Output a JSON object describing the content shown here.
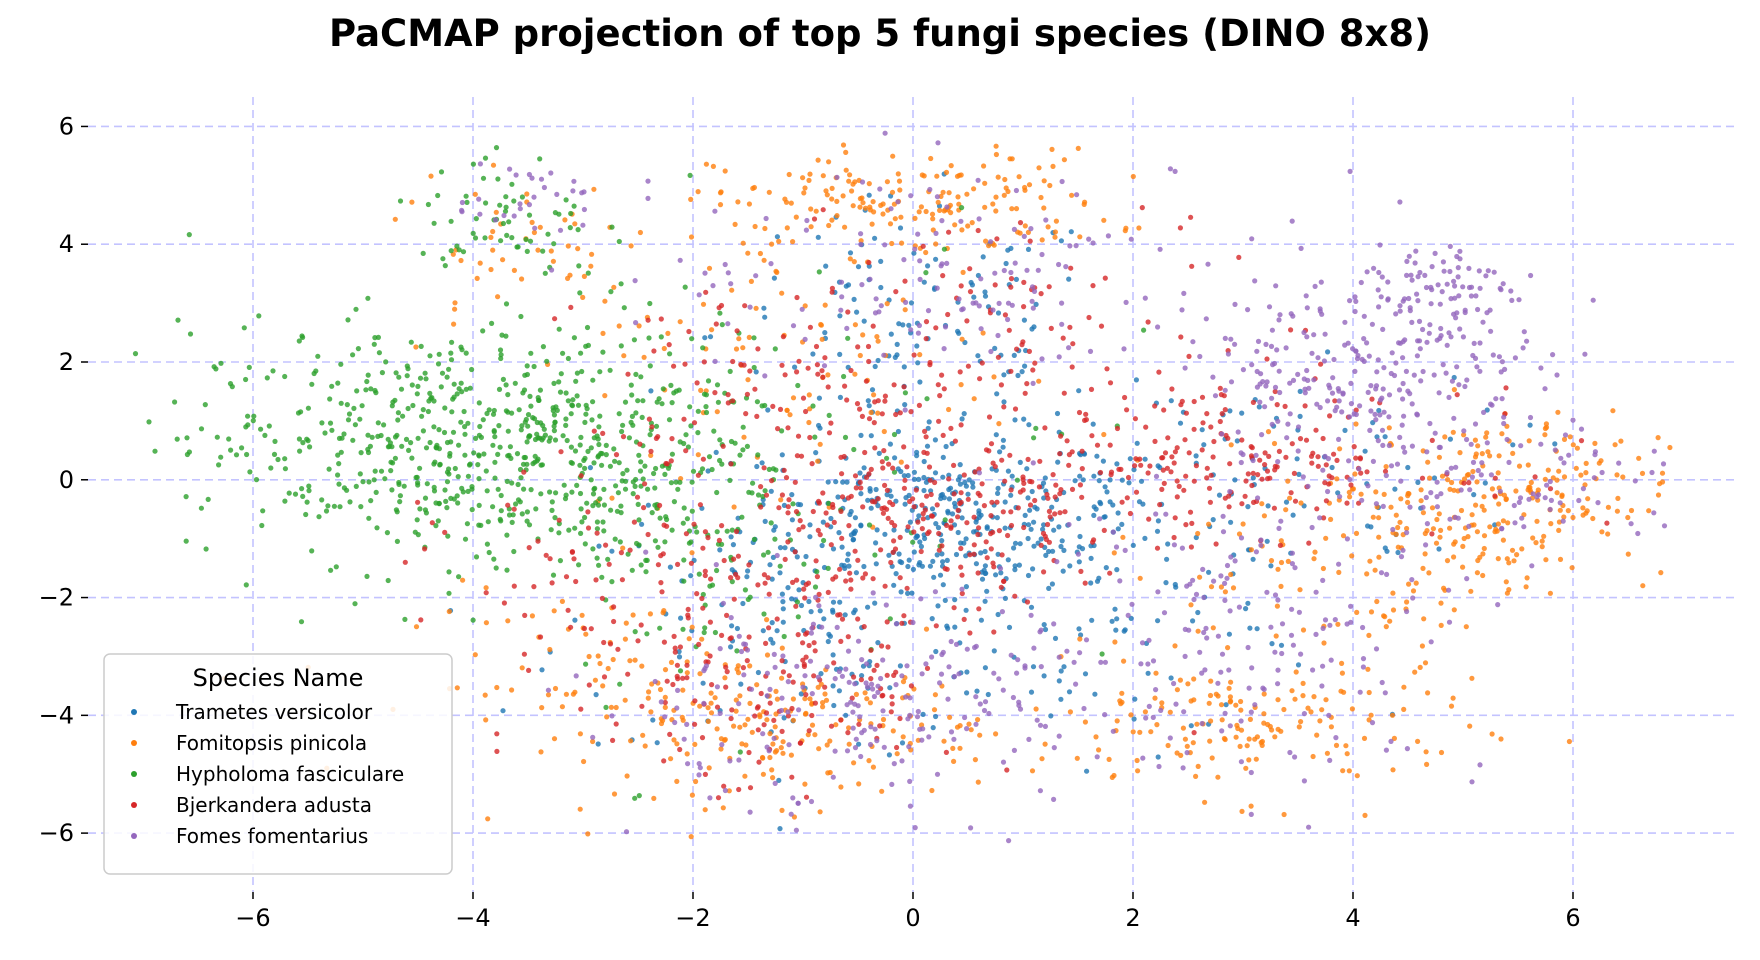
{
  "chart_data": {
    "type": "scatter",
    "title": "PaCMAP projection of top 5 fungi species (DINO 8x8)",
    "xlabel": "",
    "ylabel": "",
    "xlim": [
      -7.5,
      7.5
    ],
    "ylim": [
      -7,
      6.5
    ],
    "xticks": [
      -6,
      -4,
      -2,
      0,
      2,
      4,
      6
    ],
    "yticks": [
      6,
      4,
      2,
      0,
      -2,
      -4,
      -6
    ],
    "xtick_labels": [
      "−6",
      "−4",
      "−2",
      "0",
      "2",
      "4",
      "6"
    ],
    "ytick_labels": [
      "6",
      "4",
      "2",
      "0",
      "−2",
      "−4",
      "−6"
    ],
    "grid": true,
    "grid_color": "#c3c3ff",
    "legend": {
      "title": "Species Name",
      "placement": "lower-left"
    },
    "series": [
      {
        "name": "Trametes versicolor",
        "color": "#1f77b4",
        "clusters": [
          {
            "cx": 0.2,
            "cy": -0.6,
            "sx": 0.9,
            "sy": 0.7,
            "n": 320
          },
          {
            "cx": 0.0,
            "cy": 2.5,
            "sx": 0.9,
            "sy": 1.1,
            "n": 120
          },
          {
            "cx": 1.5,
            "cy": -1.8,
            "sx": 1.2,
            "sy": 1.3,
            "n": 150
          },
          {
            "cx": -1.0,
            "cy": -2.5,
            "sx": 1.1,
            "sy": 1.2,
            "n": 120
          },
          {
            "cx": 3.0,
            "cy": 0.3,
            "sx": 1.2,
            "sy": 0.8,
            "n": 80
          }
        ]
      },
      {
        "name": "Fomitopsis pinicola",
        "color": "#ff7f0e",
        "clusters": [
          {
            "cx": 0.0,
            "cy": 4.7,
            "sx": 0.9,
            "sy": 0.45,
            "n": 180
          },
          {
            "cx": -2.5,
            "cy": -3.5,
            "sx": 1.0,
            "sy": 0.8,
            "n": 110
          },
          {
            "cx": -1.0,
            "cy": -4.3,
            "sx": 0.8,
            "sy": 0.6,
            "n": 140
          },
          {
            "cx": 3.0,
            "cy": -4.2,
            "sx": 1.0,
            "sy": 0.6,
            "n": 160
          },
          {
            "cx": 5.3,
            "cy": -0.3,
            "sx": 0.8,
            "sy": 0.7,
            "n": 220
          },
          {
            "cx": 4.0,
            "cy": -1.5,
            "sx": 0.8,
            "sy": 1.0,
            "n": 100
          },
          {
            "cx": -3.5,
            "cy": 4.0,
            "sx": 0.6,
            "sy": 0.8,
            "n": 50
          },
          {
            "cx": -1.0,
            "cy": 2.0,
            "sx": 1.0,
            "sy": 1.5,
            "n": 100
          }
        ]
      },
      {
        "name": "Hypholoma fasciculare",
        "color": "#2ca02c",
        "clusters": [
          {
            "cx": -4.4,
            "cy": 0.6,
            "sx": 1.1,
            "sy": 1.0,
            "n": 520
          },
          {
            "cx": -2.6,
            "cy": 0.8,
            "sx": 0.8,
            "sy": 1.1,
            "n": 220
          },
          {
            "cx": -3.7,
            "cy": 4.4,
            "sx": 0.4,
            "sy": 0.6,
            "n": 60
          },
          {
            "cx": -2.0,
            "cy": -1.5,
            "sx": 0.7,
            "sy": 1.0,
            "n": 80
          },
          {
            "cx": -0.5,
            "cy": 0.5,
            "sx": 1.5,
            "sy": 2.5,
            "n": 40
          }
        ]
      },
      {
        "name": "Bjerkandera adusta",
        "color": "#d62728",
        "clusters": [
          {
            "cx": 0.2,
            "cy": -0.7,
            "sx": 0.9,
            "sy": 0.7,
            "n": 200
          },
          {
            "cx": 2.8,
            "cy": 0.3,
            "sx": 1.1,
            "sy": 0.6,
            "n": 200
          },
          {
            "cx": -1.3,
            "cy": -3.2,
            "sx": 0.9,
            "sy": 1.2,
            "n": 200
          },
          {
            "cx": -1.0,
            "cy": 1.3,
            "sx": 1.0,
            "sy": 1.2,
            "n": 150
          },
          {
            "cx": -2.8,
            "cy": -1.5,
            "sx": 0.8,
            "sy": 0.8,
            "n": 60
          },
          {
            "cx": 1.5,
            "cy": 2.5,
            "sx": 1.0,
            "sy": 1.0,
            "n": 80
          }
        ]
      },
      {
        "name": "Fomes fomentarius",
        "color": "#9467bd",
        "clusters": [
          {
            "cx": 4.2,
            "cy": 1.8,
            "sx": 0.8,
            "sy": 0.9,
            "n": 260
          },
          {
            "cx": 4.8,
            "cy": 3.2,
            "sx": 0.3,
            "sy": 0.5,
            "n": 80
          },
          {
            "cx": -0.5,
            "cy": -3.8,
            "sx": 1.3,
            "sy": 0.9,
            "n": 220
          },
          {
            "cx": 3.2,
            "cy": -2.5,
            "sx": 1.0,
            "sy": 1.3,
            "n": 160
          },
          {
            "cx": 0.5,
            "cy": 3.5,
            "sx": 1.4,
            "sy": 1.0,
            "n": 140
          },
          {
            "cx": 5.5,
            "cy": -0.2,
            "sx": 0.8,
            "sy": 0.6,
            "n": 80
          },
          {
            "cx": -3.5,
            "cy": 4.8,
            "sx": 0.4,
            "sy": 0.3,
            "n": 30
          }
        ]
      }
    ]
  }
}
